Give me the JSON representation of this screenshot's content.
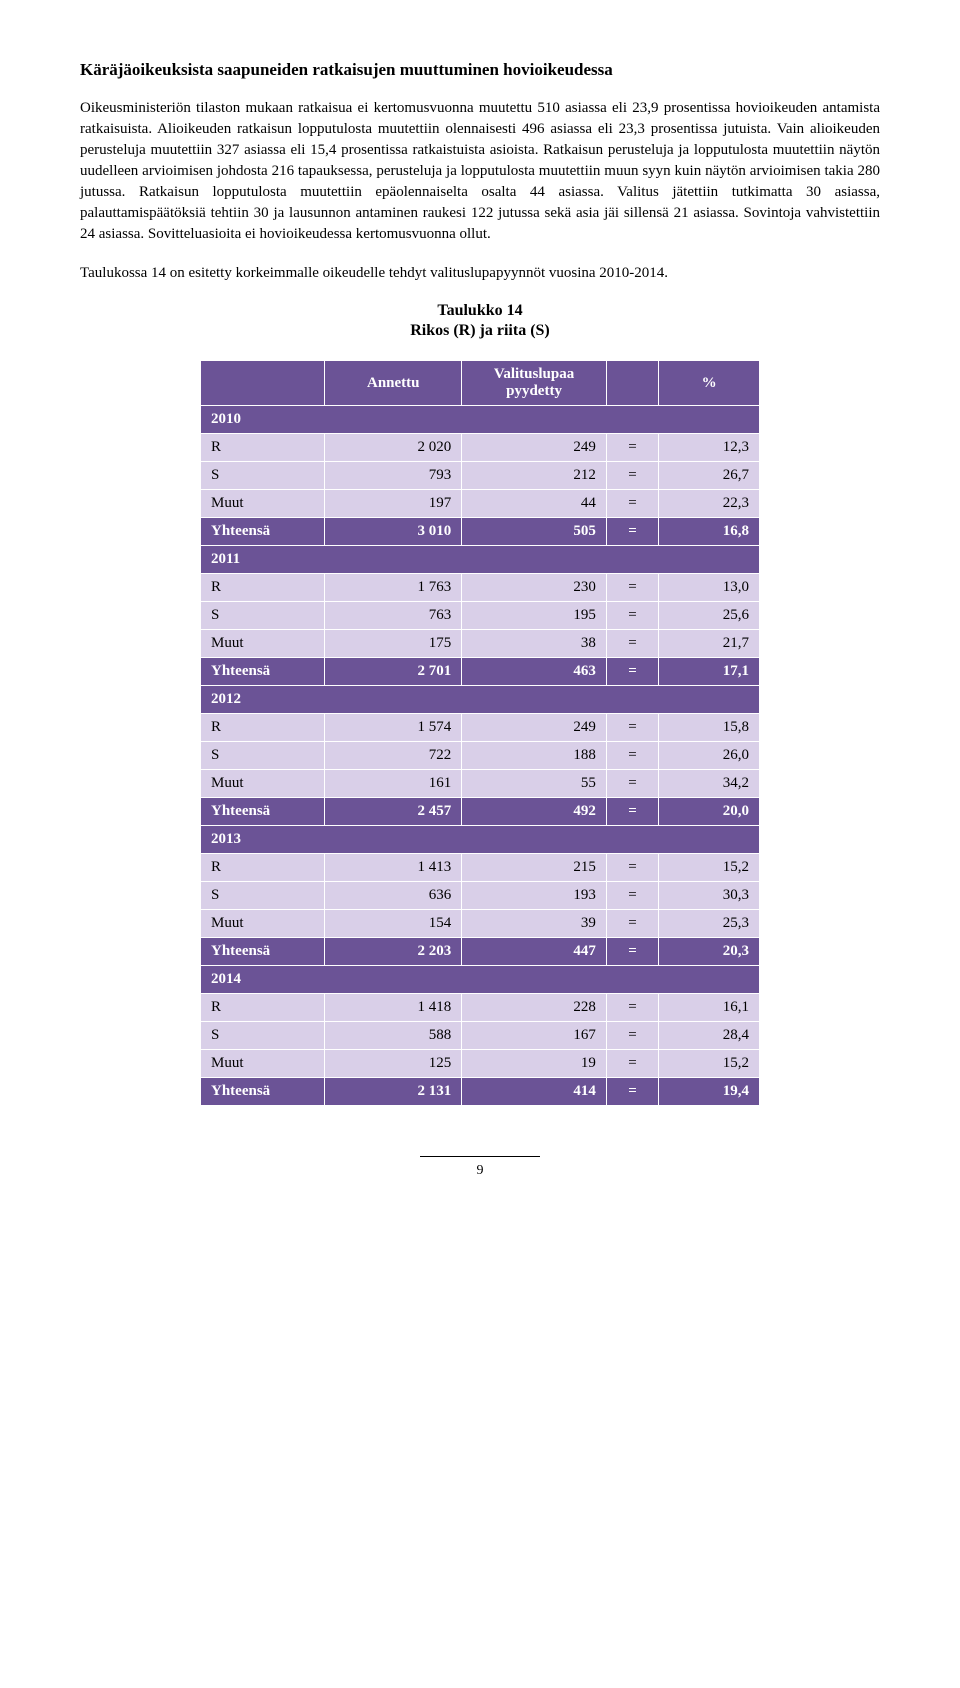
{
  "heading": "Käräjäoikeuksista saapuneiden ratkaisujen muuttuminen hovioikeudessa",
  "paragraphs": [
    "Oikeusministeriön tilaston mukaan ratkaisua ei kertomusvuonna muutettu 510 asiassa eli 23,9 prosentissa hovioikeuden antamista ratkaisuista. Alioikeuden ratkaisun lopputulosta muutettiin olennaisesti 496 asiassa eli 23,3 prosentissa jutuista. Vain alioikeuden perusteluja muutettiin 327 asiassa eli 15,4 prosentissa ratkaistuista asioista. Ratkaisun perusteluja ja lopputulosta muutettiin näytön uudelleen arvioimisen johdosta 216 tapauksessa, perusteluja ja lopputulosta muutettiin muun syyn kuin näytön arvioimisen takia 280 jutussa. Ratkaisun lopputulosta muutettiin epäolennaiselta osalta 44 asiassa. Valitus jätettiin tutkimatta 30 asiassa, palauttamispäätöksiä tehtiin 30 ja lausunnon antaminen raukesi 122 jutussa sekä asia jäi sillensä 21 asiassa. Sovintoja vahvistettiin 24 asiassa. Sovitteluasioita ei hovioikeudessa kertomusvuonna ollut.",
    "Taulukossa 14 on esitetty korkeimmalle oikeudelle tehdyt valituslupapyynnöt vuosina 2010-2014."
  ],
  "table": {
    "title": "Taulukko 14",
    "subtitle": "Rikos (R) ja riita (S)",
    "columns": [
      "",
      "Annettu",
      "Valituslupaa pyydetty",
      "",
      "%"
    ],
    "header_bg": "#6b5396",
    "header_color": "#ffffff",
    "data_bg": "#d9cfe8",
    "total_bg": "#6b5396",
    "groups": [
      {
        "year": "2010",
        "rows": [
          {
            "label": "R",
            "a": "2 020",
            "b": "249",
            "eq": "=",
            "pct": "12,3"
          },
          {
            "label": "S",
            "a": "793",
            "b": "212",
            "eq": "=",
            "pct": "26,7"
          },
          {
            "label": "Muut",
            "a": "197",
            "b": "44",
            "eq": "=",
            "pct": "22,3"
          }
        ],
        "total": {
          "label": "Yhteensä",
          "a": "3 010",
          "b": "505",
          "eq": "=",
          "pct": "16,8"
        }
      },
      {
        "year": "2011",
        "rows": [
          {
            "label": "R",
            "a": "1 763",
            "b": "230",
            "eq": "=",
            "pct": "13,0"
          },
          {
            "label": "S",
            "a": "763",
            "b": "195",
            "eq": "=",
            "pct": "25,6"
          },
          {
            "label": "Muut",
            "a": "175",
            "b": "38",
            "eq": "=",
            "pct": "21,7"
          }
        ],
        "total": {
          "label": "Yhteensä",
          "a": "2 701",
          "b": "463",
          "eq": "=",
          "pct": "17,1"
        }
      },
      {
        "year": "2012",
        "rows": [
          {
            "label": "R",
            "a": "1 574",
            "b": "249",
            "eq": "=",
            "pct": "15,8"
          },
          {
            "label": "S",
            "a": "722",
            "b": "188",
            "eq": "=",
            "pct": "26,0"
          },
          {
            "label": "Muut",
            "a": "161",
            "b": "55",
            "eq": "=",
            "pct": "34,2"
          }
        ],
        "total": {
          "label": "Yhteensä",
          "a": "2 457",
          "b": "492",
          "eq": "=",
          "pct": "20,0"
        }
      },
      {
        "year": "2013",
        "rows": [
          {
            "label": "R",
            "a": "1 413",
            "b": "215",
            "eq": "=",
            "pct": "15,2"
          },
          {
            "label": "S",
            "a": "636",
            "b": "193",
            "eq": "=",
            "pct": "30,3"
          },
          {
            "label": "Muut",
            "a": "154",
            "b": "39",
            "eq": "=",
            "pct": "25,3"
          }
        ],
        "total": {
          "label": "Yhteensä",
          "a": "2 203",
          "b": "447",
          "eq": "=",
          "pct": "20,3"
        }
      },
      {
        "year": "2014",
        "rows": [
          {
            "label": "R",
            "a": "1 418",
            "b": "228",
            "eq": "=",
            "pct": "16,1"
          },
          {
            "label": "S",
            "a": "588",
            "b": "167",
            "eq": "=",
            "pct": "28,4"
          },
          {
            "label": "Muut",
            "a": "125",
            "b": "19",
            "eq": "=",
            "pct": "15,2"
          }
        ],
        "total": {
          "label": "Yhteensä",
          "a": "2 131",
          "b": "414",
          "eq": "=",
          "pct": "19,4"
        }
      }
    ]
  },
  "page_number": "9"
}
